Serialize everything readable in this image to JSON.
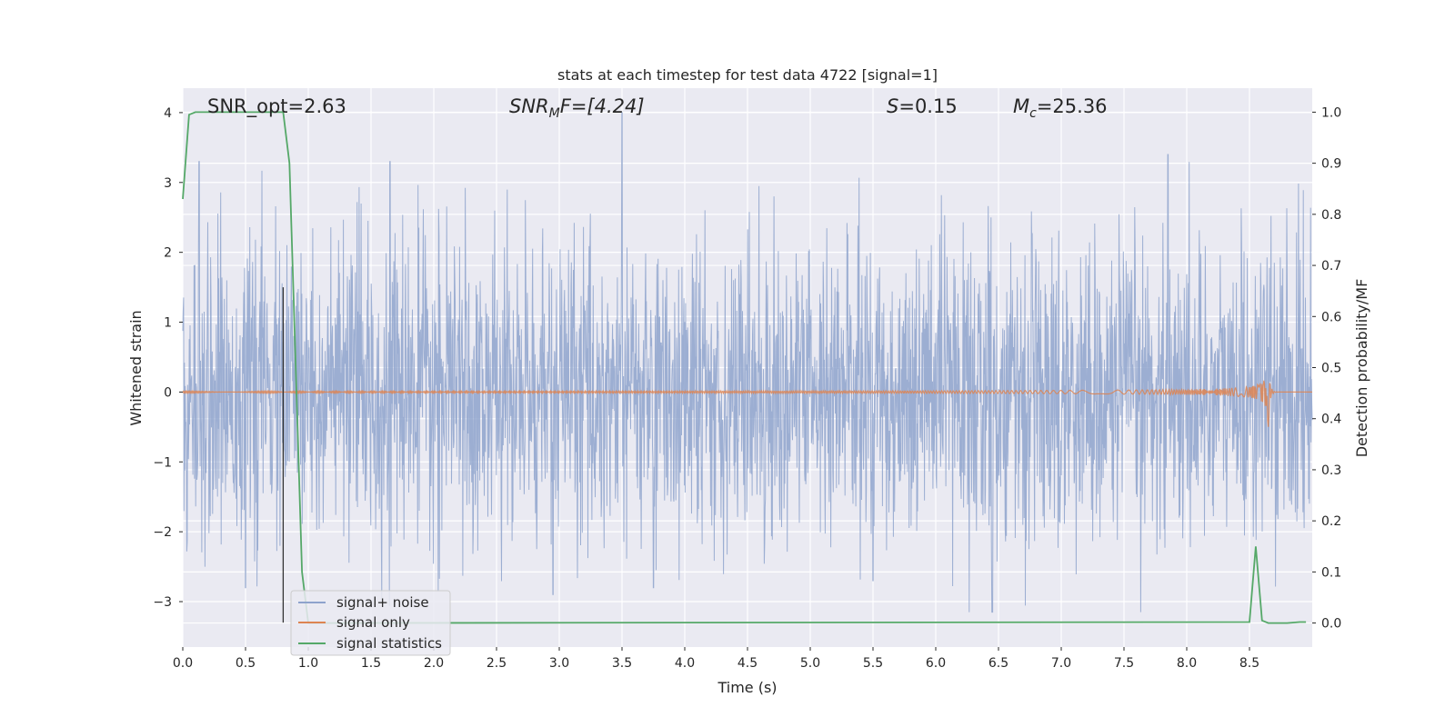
{
  "chart_data": {
    "type": "line",
    "title": "stats at each timestep for test data 4722 [signal=1]",
    "xlabel": "Time (s)",
    "ylabel": "Whitened strain",
    "ylabel_right": "Detection probability/MF",
    "xlim": [
      0.0,
      9.0
    ],
    "ylim": [
      -3.65,
      4.35
    ],
    "ylim_right": [
      -0.047,
      1.047
    ],
    "grid": true,
    "legend_placement": "lower-left",
    "x_ticks": [
      "0.0",
      "0.5",
      "1.0",
      "1.5",
      "2.0",
      "2.5",
      "3.0",
      "3.5",
      "4.0",
      "4.5",
      "5.0",
      "5.5",
      "6.0",
      "6.5",
      "7.0",
      "7.5",
      "8.0",
      "8.5"
    ],
    "y_ticks": [
      "4",
      "3",
      "2",
      "1",
      "0",
      "−1",
      "−2",
      "−3"
    ],
    "y_ticks_right": [
      "1.0",
      "0.9",
      "0.8",
      "0.7",
      "0.6",
      "0.5",
      "0.4",
      "0.3",
      "0.2",
      "0.1",
      "0.0"
    ],
    "annotations": {
      "snr_opt": "SNR_opt=2.63",
      "snr_mf_base": "SNR",
      "snr_mf_sub": "M",
      "snr_mf_rest": "F=[4.24]",
      "s_base": "S",
      "s_rest": "=0.15",
      "mc_base": "M",
      "mc_sub": "c",
      "mc_rest": "=25.36"
    },
    "series": [
      {
        "name": "signal+ noise",
        "color": "#8ea3cc",
        "axis": "left",
        "x_range": [
          0.0,
          9.0
        ],
        "amplitude_range": [
          -3.15,
          4.0
        ],
        "peaks": [
          {
            "x": 0.13,
            "y": 3.3
          },
          {
            "x": 1.65,
            "y": 3.3
          },
          {
            "x": 3.5,
            "y": 4.0
          },
          {
            "x": 7.85,
            "y": 3.4
          },
          {
            "x": 2.95,
            "y": -2.9
          },
          {
            "x": 6.45,
            "y": -3.15
          },
          {
            "x": 5.5,
            "y": -2.7
          },
          {
            "x": 0.5,
            "y": -2.8
          },
          {
            "x": 3.75,
            "y": -2.8
          }
        ]
      },
      {
        "name": "signal only",
        "color": "#dd8452",
        "axis": "left",
        "x_range": [
          0.0,
          9.0
        ],
        "chirp_peak_x": 8.65,
        "chirp_peak_amplitude": 0.5
      },
      {
        "name": "signal statistics",
        "color": "#55a868",
        "axis": "right",
        "x": [
          0.0,
          0.05,
          0.1,
          0.8,
          0.85,
          0.9,
          0.95,
          1.0,
          8.5,
          8.55,
          8.6,
          8.65,
          8.7,
          8.8,
          8.9,
          8.95
        ],
        "values": [
          0.83,
          0.995,
          1.0,
          1.0,
          0.9,
          0.5,
          0.1,
          0.0,
          0.002,
          0.15,
          0.005,
          0.0,
          0.0,
          0.0,
          0.002,
          0.002
        ]
      }
    ],
    "vertical_marker": {
      "x": 0.8,
      "y_range": [
        -3.3,
        1.5
      ],
      "color": "#333333"
    }
  }
}
